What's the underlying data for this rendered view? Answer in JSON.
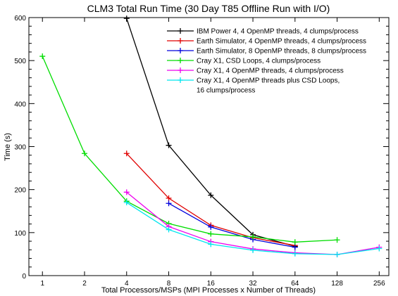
{
  "chart_data": {
    "type": "line",
    "title": "CLM3 Total Run Time (30 Day T85 Offline Run with I/O)",
    "xlabel": "Total Processors/MSPs (MPI Processes x Number of Threads)",
    "ylabel": "Time (s)",
    "x_scale": "log2",
    "x_ticks": [
      1,
      2,
      4,
      8,
      16,
      32,
      64,
      128,
      256
    ],
    "xlim": [
      0.8,
      300
    ],
    "ylim": [
      0,
      600
    ],
    "y_ticks": [
      0,
      100,
      200,
      300,
      400,
      500,
      600
    ],
    "grid": false,
    "legend_position": "top-right",
    "series": [
      {
        "name": "IBM Power 4, 4 OpenMP threads, 4 clumps/process",
        "color": "#000000",
        "x": [
          4,
          8,
          16,
          32,
          64
        ],
        "y": [
          598,
          303,
          187,
          95,
          68
        ]
      },
      {
        "name": "Earth Simulator, 4 OpenMP threads, 4 clumps/process",
        "color": "#e00000",
        "x": [
          4,
          8,
          16,
          32,
          64
        ],
        "y": [
          284,
          180,
          117,
          88,
          70
        ]
      },
      {
        "name": "Earth Simulator, 8 OpenMP threads, 8 clumps/process",
        "color": "#0000dd",
        "x": [
          8,
          16,
          32,
          64
        ],
        "y": [
          168,
          113,
          84,
          66
        ]
      },
      {
        "name": "Cray X1, CSD Loops, 4 clumps/process",
        "color": "#00dd00",
        "x": [
          1,
          2,
          4,
          8,
          16,
          32,
          64,
          128
        ],
        "y": [
          510,
          284,
          173,
          121,
          97,
          90,
          78,
          83
        ]
      },
      {
        "name": "Cray X1, 4 OpenMP threads, 4 clumps/process",
        "color": "#ee00ee",
        "x": [
          4,
          8,
          16,
          32,
          64,
          128,
          256
        ],
        "y": [
          194,
          114,
          79,
          62,
          53,
          49,
          66
        ]
      },
      {
        "name": "Cray X1, 4 OpenMP threads plus CSD Loops,",
        "name_line2": "16 clumps/process",
        "color": "#00e5ee",
        "x": [
          4,
          8,
          16,
          32,
          64,
          128,
          256
        ],
        "y": [
          170,
          107,
          73,
          59,
          51,
          49,
          63
        ]
      }
    ]
  }
}
